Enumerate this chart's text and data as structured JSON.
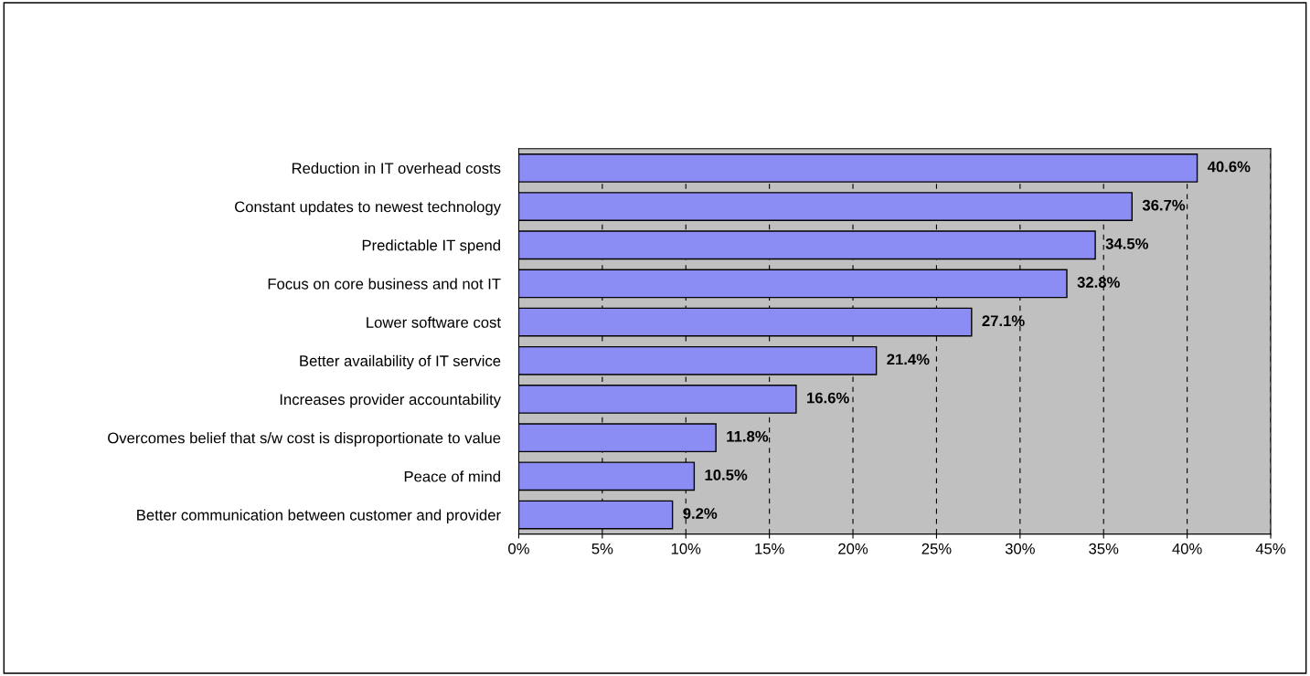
{
  "chart_data": {
    "type": "bar",
    "orientation": "horizontal",
    "categories": [
      "Reduction in IT overhead costs",
      "Constant updates to newest technology",
      "Predictable IT spend",
      "Focus on core business and not IT",
      "Lower software cost",
      "Better availability of IT service",
      "Increases provider accountability",
      "Overcomes belief that s/w cost is disproportionate to value",
      "Peace of mind",
      "Better communication between customer and provider"
    ],
    "values": [
      40.6,
      36.7,
      34.5,
      32.8,
      27.1,
      21.4,
      16.6,
      11.8,
      10.5,
      9.2
    ],
    "value_labels": [
      "40.6%",
      "36.7%",
      "34.5%",
      "32.8%",
      "27.1%",
      "21.4%",
      "16.6%",
      "11.8%",
      "10.5%",
      "9.2%"
    ],
    "color": "#8c8cf5",
    "xlim": [
      0,
      45
    ],
    "xticks": [
      {
        "value": 0,
        "label": "0%"
      },
      {
        "value": 5,
        "label": "5%"
      },
      {
        "value": 10,
        "label": "10%"
      },
      {
        "value": 15,
        "label": "15%"
      },
      {
        "value": 20,
        "label": "20%"
      },
      {
        "value": 25,
        "label": "25%"
      },
      {
        "value": 30,
        "label": "30%"
      },
      {
        "value": 35,
        "label": "35%"
      },
      {
        "value": 40,
        "label": "40%"
      },
      {
        "value": 45,
        "label": "45%"
      }
    ],
    "grid": "x",
    "legend": false
  }
}
